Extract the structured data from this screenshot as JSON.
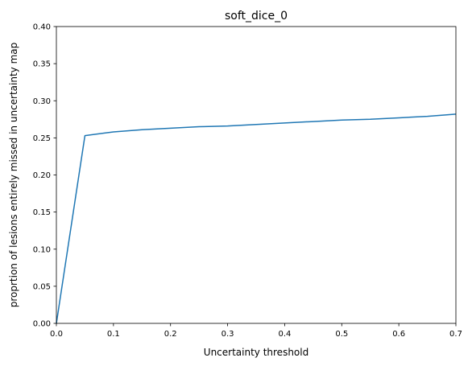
{
  "chart_data": {
    "type": "line",
    "title": "soft_dice_0",
    "xlabel": "Uncertainty threshold",
    "ylabel": "proprtion of lesions entirely missed in uncertainty map",
    "xlim": [
      0.0,
      0.7
    ],
    "ylim": [
      0.0,
      0.4
    ],
    "xticks": [
      "0.0",
      "0.1",
      "0.2",
      "0.3",
      "0.4",
      "0.5",
      "0.6",
      "0.7"
    ],
    "yticks": [
      "0.00",
      "0.05",
      "0.10",
      "0.15",
      "0.20",
      "0.25",
      "0.30",
      "0.35",
      "0.40"
    ],
    "grid": false,
    "series": [
      {
        "color": "#1f77b4",
        "x": [
          0.0,
          0.05,
          0.1,
          0.15,
          0.2,
          0.25,
          0.3,
          0.35,
          0.4,
          0.45,
          0.5,
          0.55,
          0.6,
          0.65,
          0.7
        ],
        "y": [
          0.0,
          0.253,
          0.258,
          0.261,
          0.263,
          0.265,
          0.266,
          0.268,
          0.27,
          0.272,
          0.274,
          0.275,
          0.277,
          0.279,
          0.282
        ]
      }
    ]
  }
}
